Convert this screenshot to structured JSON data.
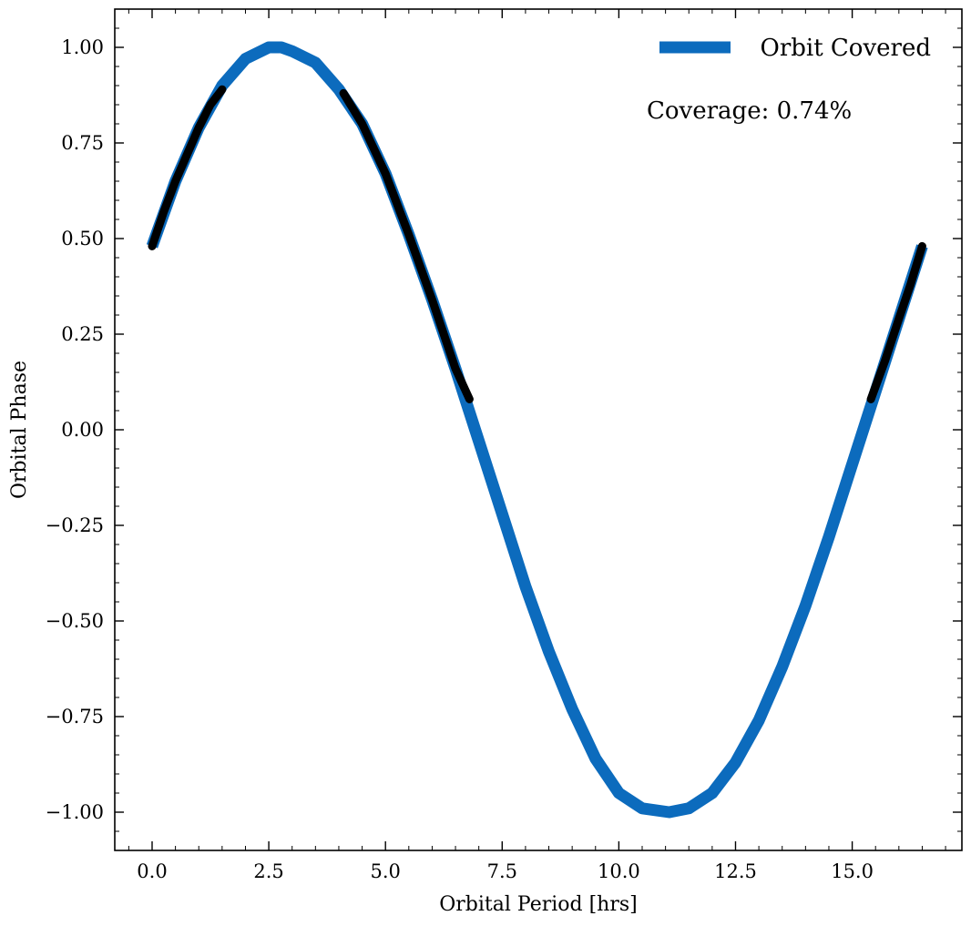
{
  "chart_data": {
    "type": "line",
    "title": "",
    "xlabel": "Orbital Period [hrs]",
    "ylabel": "Orbital Phase",
    "xlim": [
      -0.8,
      17.35
    ],
    "ylim": [
      -1.1,
      1.1
    ],
    "x_ticks": [
      0.0,
      2.5,
      5.0,
      7.5,
      10.0,
      12.5,
      15.0
    ],
    "x_tick_labels": [
      "0.0",
      "2.5",
      "5.0",
      "7.5",
      "10.0",
      "12.5",
      "15.0"
    ],
    "y_ticks": [
      1.0,
      0.75,
      0.5,
      0.25,
      0.0,
      -0.25,
      -0.5,
      -0.75,
      -1.0
    ],
    "y_tick_labels": [
      "1.00",
      "0.75",
      "0.50",
      "0.25",
      "0.00",
      "−0.25",
      "−0.50",
      "−0.75",
      "−1.00"
    ],
    "grid": false,
    "legend_position": "top-right",
    "annotation": "Coverage: 0.74%",
    "series": [
      {
        "name": "Orbit Covered",
        "color": "#0c6bbd",
        "x": [
          0.0,
          0.5,
          1.0,
          1.5,
          2.0,
          2.5,
          2.77,
          3.0,
          3.5,
          4.0,
          4.5,
          5.0,
          5.5,
          6.0,
          6.5,
          7.0,
          7.5,
          8.0,
          8.5,
          9.0,
          9.5,
          10.0,
          10.5,
          11.08,
          11.5,
          12.0,
          12.5,
          13.0,
          13.5,
          14.0,
          14.5,
          15.0,
          15.5,
          16.0,
          16.5
        ],
        "y": [
          0.48,
          0.65,
          0.79,
          0.9,
          0.97,
          1.0,
          1.0,
          0.99,
          0.96,
          0.89,
          0.8,
          0.67,
          0.51,
          0.34,
          0.16,
          -0.03,
          -0.22,
          -0.41,
          -0.58,
          -0.73,
          -0.86,
          -0.95,
          -0.99,
          -1.0,
          -0.99,
          -0.95,
          -0.87,
          -0.76,
          -0.62,
          -0.46,
          -0.28,
          -0.09,
          0.1,
          0.29,
          0.48
        ]
      },
      {
        "name": "",
        "color": "#000000",
        "segments": [
          {
            "x": [
              0.0,
              0.25,
              0.5,
              0.75,
              1.0,
              1.25,
              1.5
            ],
            "y": [
              0.48,
              0.57,
              0.65,
              0.72,
              0.79,
              0.85,
              0.89
            ]
          },
          {
            "x": [
              4.1,
              4.5,
              5.0,
              5.5,
              6.0,
              6.5,
              6.8
            ],
            "y": [
              0.88,
              0.8,
              0.67,
              0.51,
              0.34,
              0.16,
              0.08
            ]
          },
          {
            "x": [
              15.4,
              15.7,
              16.0,
              16.25,
              16.5
            ],
            "y": [
              0.08,
              0.18,
              0.29,
              0.38,
              0.48
            ]
          }
        ]
      }
    ]
  }
}
